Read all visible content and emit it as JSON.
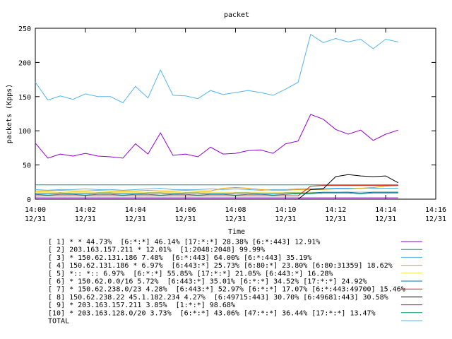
{
  "chart_data": {
    "type": "line",
    "title": "packet",
    "xlabel": "Time",
    "ylabel": "packets (Kpps)",
    "ylim": [
      0,
      250
    ],
    "yticks": [
      0,
      50,
      100,
      150,
      200,
      250
    ],
    "x_unit": "minutes since 14:00 on 12/31",
    "xlim": [
      0,
      16
    ],
    "xticks": [
      {
        "t": 0,
        "time": "14:00",
        "date": "12/31"
      },
      {
        "t": 2,
        "time": "14:02",
        "date": "12/31"
      },
      {
        "t": 4,
        "time": "14:04",
        "date": "12/31"
      },
      {
        "t": 6,
        "time": "14:06",
        "date": "12/31"
      },
      {
        "t": 8,
        "time": "14:08",
        "date": "12/31"
      },
      {
        "t": 10,
        "time": "14:10",
        "date": "12/31"
      },
      {
        "t": 12,
        "time": "14:12",
        "date": "12/31"
      },
      {
        "t": 14,
        "time": "14:14",
        "date": "12/31"
      },
      {
        "t": 16,
        "time": "14:16",
        "date": "12/31"
      }
    ],
    "x": [
      0,
      0.5,
      1,
      1.5,
      2,
      2.5,
      3,
      3.5,
      4,
      4.5,
      5,
      5.5,
      6,
      6.5,
      7,
      7.5,
      8,
      8.5,
      9,
      9.5,
      10,
      10.5,
      11,
      11.5,
      12,
      12.5,
      13,
      13.5,
      14,
      14.5
    ],
    "legend_placement": "below",
    "series": [
      {
        "name": "[ 1] * * 44.73%  [6:*:*] 46.14% [17:*:*] 28.38% [6:*:443] 12.91%",
        "color": "#9400d3",
        "values": [
          2,
          2,
          2,
          2,
          2,
          2,
          2,
          2,
          2,
          2,
          2,
          2,
          2,
          2,
          2,
          2,
          2,
          2,
          2,
          2,
          2,
          2,
          2,
          2,
          2,
          2,
          2,
          2,
          2,
          2
        ]
      },
      {
        "name": "[ 2] 203.163.157.211 * 12.01%  [1:2048:2048] 99.99%",
        "color": "#009e73",
        "values": [
          21,
          21,
          21,
          21,
          21,
          21,
          21,
          21,
          21,
          21,
          21,
          21,
          21,
          21,
          21,
          21,
          21,
          21,
          21,
          21,
          21,
          21,
          21,
          21,
          21,
          21,
          21,
          21,
          21,
          21
        ]
      },
      {
        "name": "[ 3] * 150.62.131.186 7.48%  [6:*:443] 64.00% [6:*:443] 35.19%",
        "color": "#56b4e9",
        "values": [
          14,
          13,
          14,
          14,
          15,
          14,
          14,
          13,
          14,
          15,
          16,
          14,
          14,
          14,
          15,
          14,
          15,
          14,
          13,
          14,
          14,
          15,
          15,
          16,
          16,
          16,
          16,
          16,
          16,
          16
        ]
      },
      {
        "name": "[ 4] 150.62.131.186 * 6.97%  [6:443:*] 25.73% [6:80:*] 23.80% [6:80:31359] 18.62%",
        "color": "#e69f00",
        "values": [
          12,
          12,
          13,
          12,
          12,
          13,
          12,
          12,
          12,
          13,
          12,
          12,
          13,
          12,
          12,
          16,
          17,
          16,
          14,
          13,
          13,
          14,
          14,
          14,
          15,
          15,
          16,
          17,
          19,
          20
        ]
      },
      {
        "name": "[ 5] *:: *:: 6.97%  [6:*:*] 55.85% [17:*:*] 21.05% [6:443:*] 16.28%",
        "color": "#f0e442",
        "values": [
          10,
          10,
          10,
          10,
          10,
          10,
          10,
          10,
          10,
          10,
          10,
          10,
          10,
          10,
          10,
          10,
          10,
          10,
          10,
          10,
          10,
          10,
          10,
          10,
          10,
          11,
          11,
          11,
          11,
          11
        ]
      },
      {
        "name": "[ 6] * 150.62.0.0/16 5.72%  [6:443:*] 35.01% [6:*:*] 34.52% [17:*:*] 24.92%",
        "color": "#0072b2",
        "values": [
          8,
          8,
          9,
          8,
          8,
          9,
          9,
          8,
          8,
          9,
          9,
          8,
          9,
          9,
          8,
          8,
          9,
          9,
          8,
          8,
          9,
          9,
          9,
          10,
          10,
          10,
          9,
          10,
          10,
          10
        ]
      },
      {
        "name": "[ 7] * 150.62.238.0/23 4.28%  [6:443:*] 52.97% [6:*:*] 17.07% [6:*:443:49700] 15.46%",
        "color": "#e51e10",
        "values": [
          5,
          5,
          5,
          5,
          5,
          5,
          5,
          5,
          5,
          5,
          5,
          5,
          5,
          5,
          5,
          5,
          5,
          5,
          5,
          5,
          5,
          5,
          19,
          20,
          20,
          20,
          20,
          20,
          20,
          20
        ]
      },
      {
        "name": "[ 8] 150.62.238.22 45.1.182.234 4.27%  [6:49715:443] 30.70% [6:49681:443] 30.58%",
        "color": "#000000",
        "values": [
          0,
          0,
          0,
          0,
          0,
          0,
          0,
          0,
          0,
          0,
          0,
          0,
          0,
          0,
          0,
          0,
          0,
          0,
          0,
          0,
          0,
          0,
          14,
          15,
          33,
          36,
          34,
          33,
          34,
          24
        ]
      },
      {
        "name": "[ 9] * 203.163.157.211 3.85%  [1:*:*] 98.68%",
        "color": "#9400d3",
        "values": [
          82,
          60,
          66,
          63,
          67,
          63,
          62,
          60,
          81,
          66,
          97,
          64,
          66,
          62,
          76,
          66,
          67,
          71,
          72,
          67,
          81,
          85,
          124,
          117,
          102,
          95,
          101,
          86,
          95,
          101
        ]
      },
      {
        "name": "[10] * 203.163.128.0/20 3.73%  [6:*:*] 43.06% [47:*:*] 36.44% [17:*:*] 13.47%",
        "color": "#009e73",
        "values": [
          7,
          6,
          7,
          7,
          6,
          7,
          7,
          6,
          7,
          7,
          6,
          7,
          7,
          6,
          7,
          7,
          6,
          7,
          7,
          6,
          7,
          8,
          8,
          9,
          9,
          9,
          8,
          9,
          9,
          9
        ]
      },
      {
        "name": "TOTAL",
        "color": "#56b4e9",
        "values": [
          171,
          145,
          151,
          146,
          154,
          150,
          150,
          141,
          165,
          148,
          189,
          152,
          151,
          147,
          159,
          153,
          156,
          159,
          156,
          152,
          161,
          171,
          241,
          229,
          235,
          230,
          234,
          220,
          234,
          230
        ]
      }
    ]
  }
}
